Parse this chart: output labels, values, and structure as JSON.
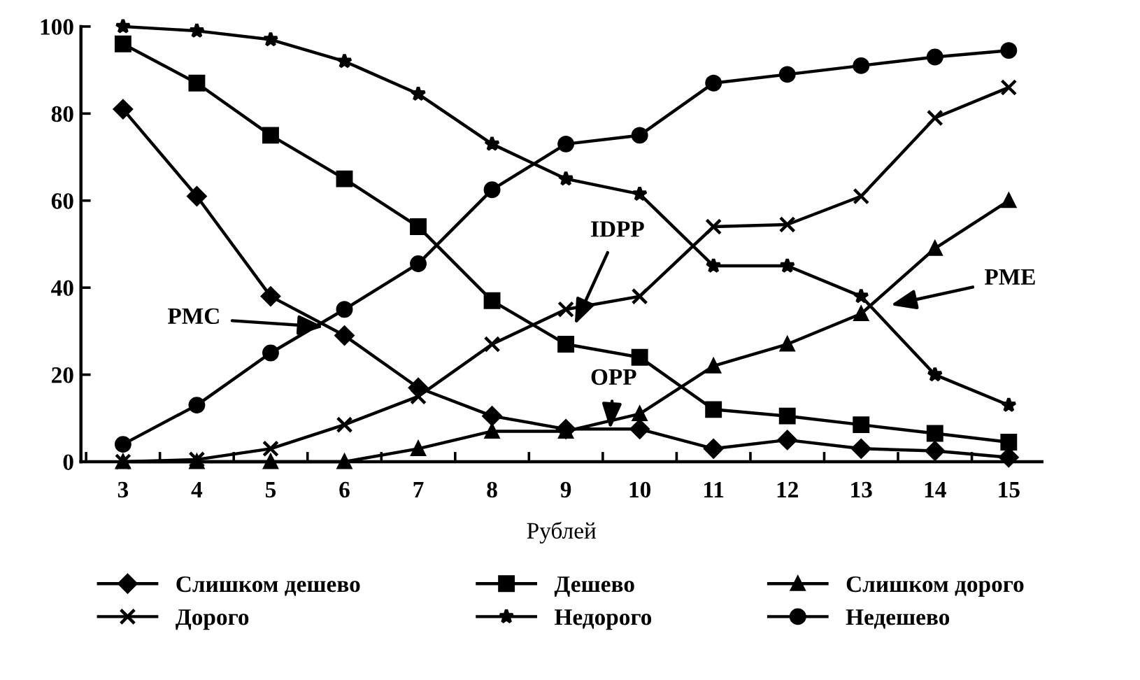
{
  "chart_data": {
    "type": "line",
    "xlabel": "Рублей",
    "categories": [
      "3",
      "4",
      "5",
      "6",
      "7",
      "8",
      "9",
      "10",
      "11",
      "12",
      "13",
      "14",
      "15"
    ],
    "ylim": [
      0,
      100
    ],
    "yticks": [
      0,
      20,
      40,
      60,
      80,
      100
    ],
    "grid": false,
    "legend": "bottom",
    "line_style": "solid",
    "series": [
      {
        "name": "Слишком дешево",
        "color": "#000000",
        "marker": "diamond",
        "values": [
          81,
          61,
          38,
          29,
          17,
          10.5,
          7.5,
          7.5,
          3,
          5,
          3,
          2.5,
          1
        ]
      },
      {
        "name": "Дешево",
        "color": "#000000",
        "marker": "square",
        "values": [
          96,
          87,
          75,
          65,
          54,
          37,
          27,
          24,
          12,
          10.5,
          8.5,
          6.5,
          4.5
        ]
      },
      {
        "name": "Слишком дорого",
        "color": "#000000",
        "marker": "triangle",
        "values": [
          0,
          0,
          0,
          0,
          3,
          7,
          7,
          11,
          22,
          27,
          34,
          49,
          60
        ]
      },
      {
        "name": "Дорого",
        "color": "#000000",
        "marker": "cross",
        "values": [
          0,
          0.5,
          3,
          8.5,
          15,
          27,
          35,
          38,
          54,
          54.5,
          61,
          79,
          86
        ]
      },
      {
        "name": "Недорого",
        "color": "#000000",
        "marker": "star",
        "values": [
          100,
          99,
          97,
          92,
          84.5,
          73,
          65,
          61.5,
          45,
          45,
          38,
          20,
          13
        ]
      },
      {
        "name": "Недешево",
        "color": "#000000",
        "marker": "circle",
        "values": [
          4,
          13,
          25,
          35,
          45.5,
          62.5,
          73,
          75,
          87,
          89,
          91,
          93,
          94.5
        ]
      }
    ],
    "annotations": [
      "PMC",
      "IDPP",
      "OPP",
      "PME"
    ]
  }
}
